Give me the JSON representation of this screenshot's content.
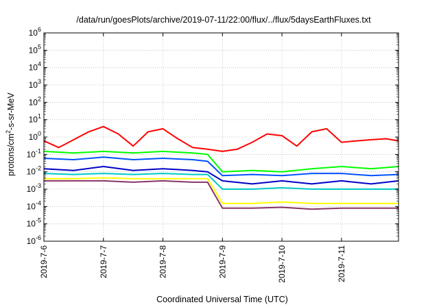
{
  "chart_data": {
    "type": "line",
    "title": "/data/run/goesPlots/archive/2019-07-11/22:00/flux/../flux/5daysEarthFluxes.txt",
    "xlabel": "Coordinated Universal Time (UTC)",
    "ylabel": "protons/cm2-s-sr-MeV",
    "ylabel_parts": [
      "protons/cm",
      "2",
      "-s-sr-MeV"
    ],
    "y_scale": "log",
    "ylim": [
      1e-06,
      1000000.0
    ],
    "y_ticks": [
      {
        "base": "10",
        "exp": "-6"
      },
      {
        "base": "10",
        "exp": "-5"
      },
      {
        "base": "10",
        "exp": "-4"
      },
      {
        "base": "10",
        "exp": "-3"
      },
      {
        "base": "10",
        "exp": "-2"
      },
      {
        "base": "10",
        "exp": "-1"
      },
      {
        "base": "10",
        "exp": "0"
      },
      {
        "base": "10",
        "exp": "1"
      },
      {
        "base": "10",
        "exp": "2"
      },
      {
        "base": "10",
        "exp": "3"
      },
      {
        "base": "10",
        "exp": "4"
      },
      {
        "base": "10",
        "exp": "5"
      },
      {
        "base": "10",
        "exp": "6"
      }
    ],
    "xlim": [
      "2019-07-06 00:00",
      "2019-07-11 23:00"
    ],
    "x_ticks": [
      "2019-7-6",
      "2019-7-7",
      "2019-7-8",
      "2019-7-9",
      "2019-7-10",
      "2019-7-11"
    ],
    "grid": true,
    "series": [
      {
        "color": "#ff0000",
        "x": [
          "2019-07-06 00:00",
          "2019-07-06 06:00",
          "2019-07-06 12:00",
          "2019-07-06 18:00",
          "2019-07-07 00:00",
          "2019-07-07 06:00",
          "2019-07-07 12:00",
          "2019-07-07 18:00",
          "2019-07-08 00:00",
          "2019-07-08 06:00",
          "2019-07-08 12:00",
          "2019-07-08 18:00",
          "2019-07-09 00:00",
          "2019-07-09 06:00",
          "2019-07-09 12:00",
          "2019-07-09 18:00",
          "2019-07-10 00:00",
          "2019-07-10 06:00",
          "2019-07-10 12:00",
          "2019-07-10 18:00",
          "2019-07-11 00:00",
          "2019-07-11 06:00",
          "2019-07-11 12:00",
          "2019-07-11 18:00",
          "2019-07-11 23:00"
        ],
        "values": [
          0.6,
          0.25,
          0.7,
          2,
          4,
          1.5,
          0.3,
          2,
          3,
          0.8,
          0.25,
          0.2,
          0.15,
          0.2,
          0.5,
          1.5,
          1.2,
          0.3,
          2,
          3,
          0.5,
          0.6,
          0.7,
          0.8,
          0.6
        ]
      },
      {
        "color": "#00ff00",
        "x": [
          "2019-07-06 00:00",
          "2019-07-06 12:00",
          "2019-07-07 00:00",
          "2019-07-07 12:00",
          "2019-07-08 00:00",
          "2019-07-08 12:00",
          "2019-07-08 18:00",
          "2019-07-09 00:00",
          "2019-07-09 12:00",
          "2019-07-10 00:00",
          "2019-07-10 12:00",
          "2019-07-11 00:00",
          "2019-07-11 12:00",
          "2019-07-11 23:00"
        ],
        "values": [
          0.15,
          0.12,
          0.15,
          0.12,
          0.15,
          0.12,
          0.1,
          0.01,
          0.012,
          0.01,
          0.015,
          0.02,
          0.015,
          0.02
        ]
      },
      {
        "color": "#0050ff",
        "x": [
          "2019-07-06 00:00",
          "2019-07-06 12:00",
          "2019-07-07 00:00",
          "2019-07-07 12:00",
          "2019-07-08 00:00",
          "2019-07-08 12:00",
          "2019-07-08 18:00",
          "2019-07-09 00:00",
          "2019-07-09 12:00",
          "2019-07-10 00:00",
          "2019-07-10 12:00",
          "2019-07-11 00:00",
          "2019-07-11 12:00",
          "2019-07-11 23:00"
        ],
        "values": [
          0.06,
          0.05,
          0.07,
          0.05,
          0.06,
          0.05,
          0.04,
          0.006,
          0.007,
          0.006,
          0.008,
          0.008,
          0.006,
          0.007
        ]
      },
      {
        "color": "#0000c8",
        "x": [
          "2019-07-06 00:00",
          "2019-07-06 12:00",
          "2019-07-07 00:00",
          "2019-07-07 12:00",
          "2019-07-08 00:00",
          "2019-07-08 12:00",
          "2019-07-08 18:00",
          "2019-07-09 00:00",
          "2019-07-09 12:00",
          "2019-07-10 00:00",
          "2019-07-10 12:00",
          "2019-07-11 00:00",
          "2019-07-11 12:00",
          "2019-07-11 23:00"
        ],
        "values": [
          0.015,
          0.012,
          0.02,
          0.012,
          0.015,
          0.012,
          0.01,
          0.003,
          0.002,
          0.003,
          0.002,
          0.003,
          0.002,
          0.003
        ]
      },
      {
        "color": "#00c8c8",
        "x": [
          "2019-07-06 00:00",
          "2019-07-06 12:00",
          "2019-07-07 00:00",
          "2019-07-07 12:00",
          "2019-07-08 00:00",
          "2019-07-08 12:00",
          "2019-07-08 18:00",
          "2019-07-09 00:00",
          "2019-07-09 12:00",
          "2019-07-10 00:00",
          "2019-07-10 12:00",
          "2019-07-11 00:00",
          "2019-07-11 12:00",
          "2019-07-11 23:00"
        ],
        "values": [
          0.008,
          0.007,
          0.008,
          0.007,
          0.008,
          0.007,
          0.007,
          0.001,
          0.001,
          0.0012,
          0.001,
          0.001,
          0.001,
          0.001
        ]
      },
      {
        "color": "#ffff00",
        "x": [
          "2019-07-06 00:00",
          "2019-07-06 12:00",
          "2019-07-07 00:00",
          "2019-07-07 12:00",
          "2019-07-08 00:00",
          "2019-07-08 12:00",
          "2019-07-08 18:00",
          "2019-07-09 00:00",
          "2019-07-09 12:00",
          "2019-07-10 00:00",
          "2019-07-10 12:00",
          "2019-07-11 00:00",
          "2019-07-11 12:00",
          "2019-07-11 23:00"
        ],
        "values": [
          0.004,
          0.004,
          0.0045,
          0.004,
          0.004,
          0.004,
          0.004,
          0.00015,
          0.00015,
          0.00018,
          0.00015,
          0.00015,
          0.00015,
          0.00015
        ]
      },
      {
        "color": "#883366",
        "x": [
          "2019-07-06 00:00",
          "2019-07-06 12:00",
          "2019-07-07 00:00",
          "2019-07-07 12:00",
          "2019-07-08 00:00",
          "2019-07-08 12:00",
          "2019-07-08 18:00",
          "2019-07-09 00:00",
          "2019-07-09 12:00",
          "2019-07-10 00:00",
          "2019-07-10 12:00",
          "2019-07-11 00:00",
          "2019-07-11 12:00",
          "2019-07-11 23:00"
        ],
        "values": [
          0.003,
          0.003,
          0.003,
          0.0025,
          0.003,
          0.0025,
          0.0025,
          8e-05,
          8e-05,
          9e-05,
          7e-05,
          8e-05,
          8e-05,
          8e-05
        ]
      }
    ]
  }
}
